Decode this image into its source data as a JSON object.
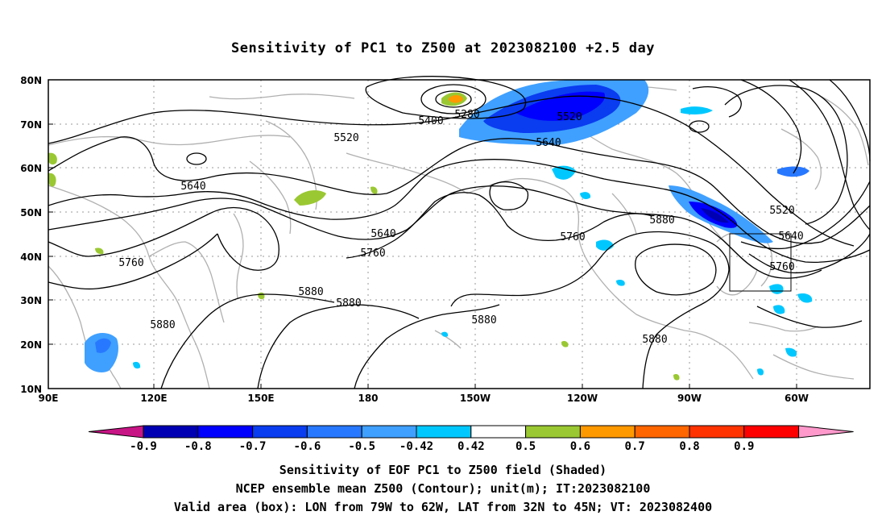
{
  "title": "Sensitivity of PC1 to Z500 at 2023082100 +2.5 day",
  "lat_labels": [
    "80N",
    "70N",
    "60N",
    "50N",
    "40N",
    "30N",
    "20N",
    "10N"
  ],
  "lon_labels": [
    "90E",
    "120E",
    "150E",
    "180",
    "150W",
    "120W",
    "90W",
    "60W"
  ],
  "contour_labels": [
    "5280",
    "5400",
    "5520",
    "5520",
    "5520",
    "5640",
    "5640",
    "5640",
    "5640",
    "5760",
    "5760",
    "5760",
    "5760",
    "5880",
    "5880",
    "5880",
    "5880",
    "5880",
    "5880"
  ],
  "colorbar": {
    "ticks": [
      "-0.9",
      "-0.8",
      "-0.7",
      "-0.6",
      "-0.5",
      "-0.42",
      "0.42",
      "0.5",
      "0.6",
      "0.7",
      "0.8",
      "0.9"
    ],
    "colors": [
      "#c71585",
      "#0000b3",
      "#0000ff",
      "#0a3cf0",
      "#2878ff",
      "#3fa0ff",
      "#00c8ff",
      "#ffffff",
      "#9ac832",
      "#ff9900",
      "#ff6600",
      "#ff3300",
      "#ff0000",
      "#ff99cc"
    ]
  },
  "footer": {
    "line1": "Sensitivity of EOF PC1 to Z500 field (Shaded)",
    "line2": "NCEP ensemble mean Z500 (Contour); unit(m); IT:2023082100",
    "line3": "Valid area (box): LON from 79W to 62W, LAT from 32N to 45N; VT: 2023082400"
  }
}
